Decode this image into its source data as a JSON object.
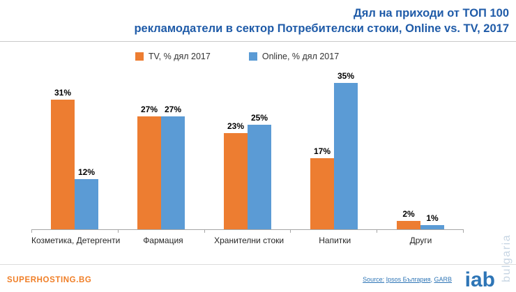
{
  "header": {
    "title_line1": "Дял на приходи от ТОП 100",
    "title_line2": "рекламодатели в сектор Потребителски стоки, Online vs. TV, 2017"
  },
  "chart_data": {
    "type": "bar",
    "categories": [
      "Козметика, Детергенти",
      "Фармация",
      "Хранителни стоки",
      "Напитки",
      "Други"
    ],
    "series": [
      {
        "name": "TV, % дял 2017",
        "color": "#ED7D31",
        "values": [
          31,
          27,
          23,
          17,
          2
        ]
      },
      {
        "name": "Online, % дял 2017",
        "color": "#5B9BD5",
        "values": [
          12,
          27,
          25,
          35,
          1
        ]
      }
    ],
    "value_suffix": "%",
    "ylim": [
      0,
      35
    ],
    "grid": false,
    "legend_position": "top-center"
  },
  "colors": {
    "title_blue": "#1F5BA8",
    "tv_orange": "#ED7D31",
    "online_blue": "#5B9BD5",
    "brand_orange": "#F07E26",
    "source_blue": "#2E75B6",
    "watermark_gray": "#C7D5E3"
  },
  "footer": {
    "brand": "SUPERHOSTING.BG",
    "source_label": "Source:",
    "source_link1": "Ipsos България",
    "source_sep": ", ",
    "source_link2": "GARB",
    "logo_text": "iab",
    "logo_sub": "bulgaria"
  }
}
